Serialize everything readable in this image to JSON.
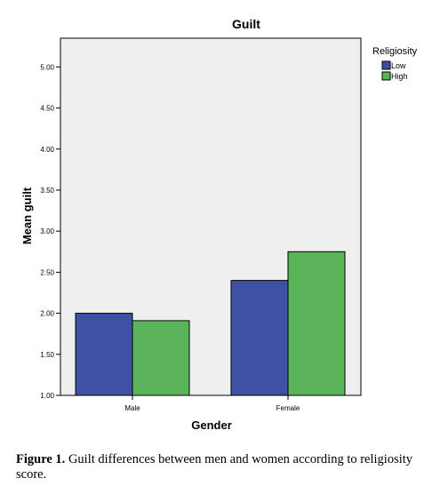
{
  "chart_data": {
    "type": "bar",
    "title": "Guilt",
    "xlabel": "Gender",
    "ylabel": "Mean guilt",
    "categories": [
      "Male",
      "Female"
    ],
    "series": [
      {
        "name": "Low",
        "values": [
          2.0,
          2.4
        ],
        "color": "#3f51a3"
      },
      {
        "name": "High",
        "values": [
          1.91,
          2.75
        ],
        "color": "#5cb45a"
      }
    ],
    "ylim": [
      1.0,
      5.35
    ],
    "yticks": [
      "1.00",
      "1.50",
      "2.00",
      "2.50",
      "3.00",
      "3.50",
      "4.00",
      "4.50",
      "5.00"
    ],
    "legend": {
      "title": "Religiosity",
      "placement": "top-right, outside plot"
    },
    "plot_background": "#efefef",
    "grid": false
  },
  "caption": {
    "label": "Figure 1.",
    "text": " Guilt differences between men and women according to religiosity score."
  }
}
